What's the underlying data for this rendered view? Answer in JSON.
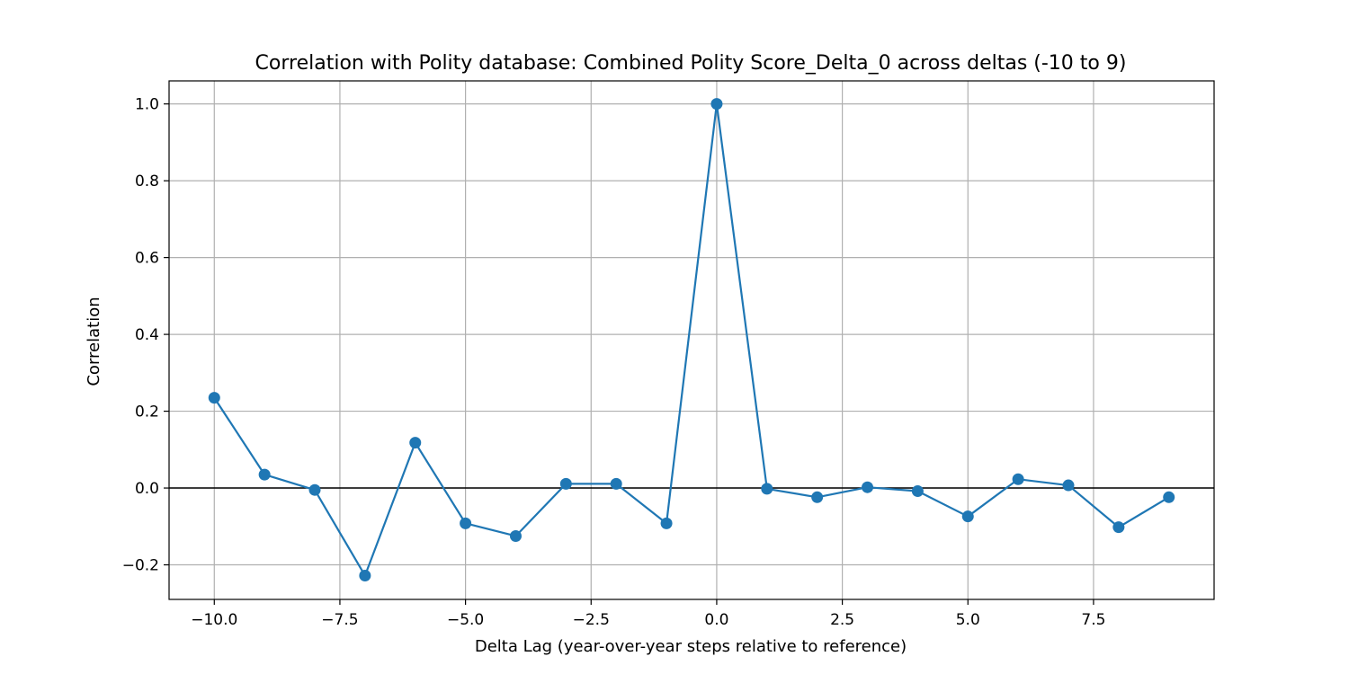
{
  "chart_data": {
    "type": "line",
    "title": "Correlation with Polity database: Combined Polity Score_Delta_0 across deltas (-10 to 9)",
    "xlabel": "Delta Lag (year-over-year steps relative to reference)",
    "ylabel": "Correlation",
    "xlim": [
      -10.9,
      9.9
    ],
    "ylim": [
      -0.29,
      1.06
    ],
    "x_ticks": [
      -10.0,
      -7.5,
      -5.0,
      -2.5,
      0.0,
      2.5,
      5.0,
      7.5
    ],
    "x_tick_labels": [
      "−10.0",
      "−7.5",
      "−5.0",
      "−2.5",
      "0.0",
      "2.5",
      "5.0",
      "7.5"
    ],
    "y_ticks": [
      -0.2,
      0.0,
      0.2,
      0.4,
      0.6,
      0.8,
      1.0
    ],
    "y_tick_labels": [
      "−0.2",
      "0.0",
      "0.2",
      "0.4",
      "0.6",
      "0.8",
      "1.0"
    ],
    "grid": true,
    "reference_line_y": 0,
    "series": [
      {
        "color": "#1f77b4",
        "marker": "circle",
        "x": [
          -10,
          -9,
          -8,
          -7,
          -6,
          -5,
          -4,
          -3,
          -2,
          -1,
          0,
          1,
          2,
          3,
          4,
          5,
          6,
          7,
          8,
          9
        ],
        "y": [
          0.235,
          0.035,
          -0.005,
          -0.228,
          0.118,
          -0.092,
          -0.125,
          0.011,
          0.011,
          -0.092,
          1.0,
          -0.002,
          -0.024,
          0.002,
          -0.008,
          -0.074,
          0.023,
          0.007,
          -0.102,
          -0.024
        ]
      }
    ]
  }
}
